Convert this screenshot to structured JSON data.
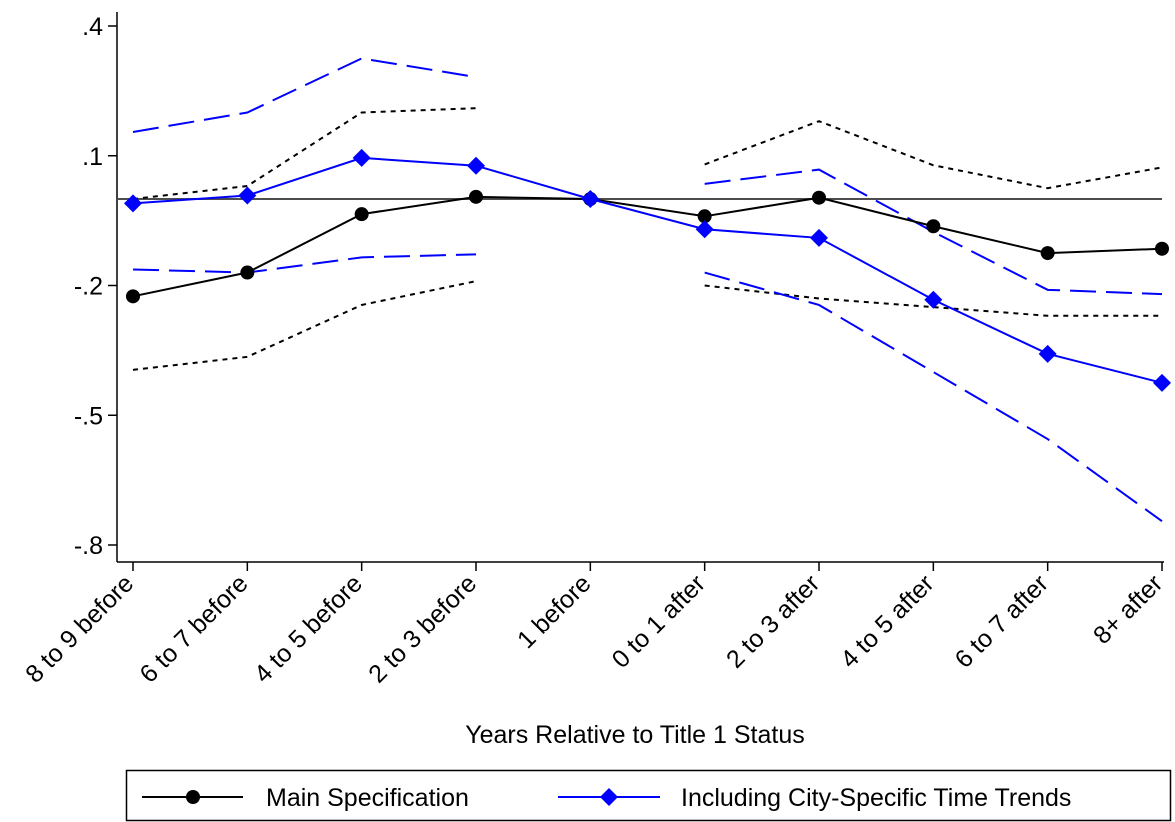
{
  "chart_data": {
    "type": "line",
    "title": "",
    "xlabel": "Years Relative to Title 1 Status",
    "ylabel": "",
    "categories": [
      "8 to 9 before",
      "6 to 7 before",
      "4 to 5 before",
      "2 to 3 before",
      "1 before",
      "0 to 1 after",
      "2 to 3 after",
      "4 to 5 after",
      "6 to 7 after",
      "8+ after"
    ],
    "yticks": [
      ".4",
      ".1",
      "-.2",
      "-.5",
      "-.8"
    ],
    "ytick_values": [
      0.4,
      0.1,
      -0.2,
      -0.5,
      -0.8
    ],
    "ylim": [
      -0.8,
      0.4
    ],
    "zero_line": 0,
    "grid": false,
    "legend_position": "bottom",
    "series": [
      {
        "name": "Main Specification",
        "color": "#000000",
        "marker": "circle",
        "values": [
          -0.225,
          -0.17,
          -0.035,
          0.005,
          0,
          -0.04,
          0.003,
          -0.063,
          -0.125,
          -0.115
        ],
        "ci_style": "short-dash",
        "ci_lower": [
          -0.395,
          -0.365,
          -0.245,
          -0.19,
          null,
          -0.2,
          -0.23,
          -0.25,
          -0.27,
          -0.27
        ],
        "ci_upper": [
          0.0,
          0.03,
          0.2,
          0.21,
          null,
          0.08,
          0.18,
          0.078,
          0.025,
          0.073
        ]
      },
      {
        "name": "Including City-Specific Time Trends",
        "color": "#0000ff",
        "marker": "diamond",
        "values": [
          -0.01,
          0.008,
          0.095,
          0.077,
          0,
          -0.07,
          -0.09,
          -0.233,
          -0.358,
          -0.425
        ],
        "ci_style": "long-dash",
        "ci_lower": [
          -0.163,
          -0.17,
          -0.135,
          -0.128,
          null,
          -0.17,
          -0.245,
          -0.4,
          -0.555,
          -0.745
        ],
        "ci_upper": [
          0.155,
          0.2,
          0.325,
          0.282,
          null,
          0.035,
          0.068,
          -0.076,
          -0.21,
          -0.22
        ]
      }
    ]
  }
}
